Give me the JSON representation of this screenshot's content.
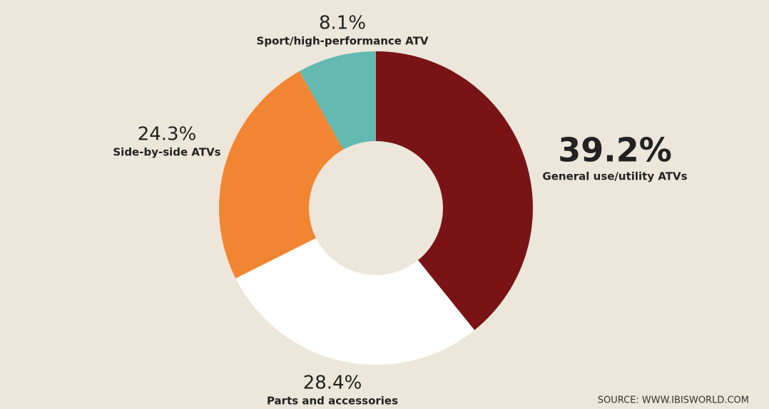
{
  "chart_data": {
    "type": "donut",
    "categories": [
      "General use/utility ATVs",
      "Parts and accessories",
      "Side-by-side ATVs",
      "Sport/high-performance ATV"
    ],
    "values": [
      39.2,
      28.4,
      24.3,
      8.1
    ],
    "value_labels": [
      "39.2%",
      "28.4%",
      "24.3%",
      "8.1%"
    ],
    "colors": [
      "#7a1315",
      "#ffffff",
      "#f28533",
      "#64b9b0"
    ],
    "source": "SOURCE: WWW.IBISWORLD.COM"
  }
}
